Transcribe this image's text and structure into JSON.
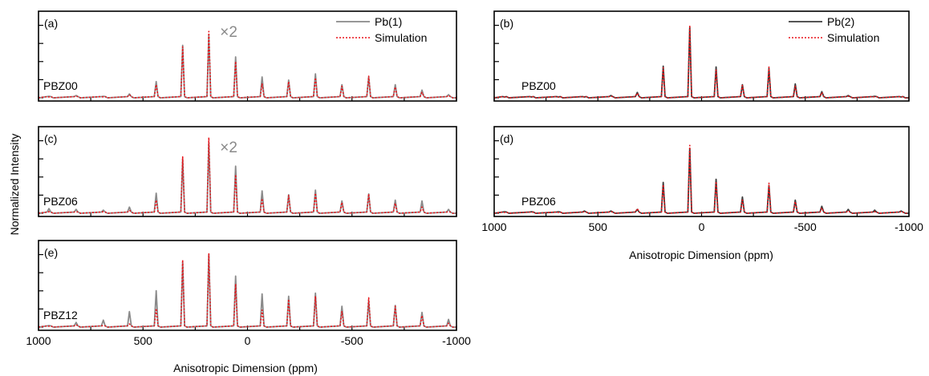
{
  "figure": {
    "ylabel": "Normalized Intensity",
    "xlabel": "Anisotropic Dimension (ppm)"
  },
  "chart_data": [
    {
      "type": "line",
      "panel": "(a)",
      "sample": "PBZ00",
      "annotation": "×2",
      "xlim": [
        1000,
        -1000
      ],
      "xticks": [
        1000,
        500,
        0,
        -500,
        -1000
      ],
      "ylim": [
        0,
        1.08
      ],
      "show_xlabels": false,
      "legend": [
        "Pb(1)",
        "Simulation"
      ],
      "legend_position": "top-right",
      "exp_color": "#8a8a8a",
      "sim_color": "#e8141a",
      "peak_x": [
        950,
        820,
        690,
        565,
        437,
        310,
        185,
        57,
        -70,
        -197,
        -325,
        -452,
        -580,
        -707,
        -835,
        -962
      ],
      "experiment": [
        0.02,
        0.03,
        0.02,
        0.05,
        0.21,
        0.68,
        0.81,
        0.53,
        0.27,
        0.23,
        0.31,
        0.17,
        0.27,
        0.17,
        0.1,
        0.04
      ],
      "simulation": [
        0.01,
        0.02,
        0.01,
        0.04,
        0.17,
        0.66,
        0.86,
        0.47,
        0.18,
        0.21,
        0.26,
        0.15,
        0.28,
        0.14,
        0.07,
        0.03
      ]
    },
    {
      "type": "line",
      "panel": "(b)",
      "sample": "PBZ00",
      "annotation": "",
      "xlim": [
        1000,
        -1000
      ],
      "xticks": [
        1000,
        500,
        0,
        -500,
        -1000
      ],
      "ylim": [
        0,
        1.08
      ],
      "show_xlabels": false,
      "legend": [
        "Pb(2)",
        "Simulation"
      ],
      "legend_position": "top-right",
      "exp_color": "#3d3d3d",
      "sim_color": "#e8141a",
      "peak_x": [
        950,
        820,
        690,
        565,
        437,
        310,
        185,
        57,
        -70,
        -197,
        -325,
        -452,
        -580,
        -707,
        -835,
        -962
      ],
      "experiment": [
        0.01,
        0.01,
        0.01,
        0.01,
        0.03,
        0.07,
        0.41,
        0.91,
        0.4,
        0.17,
        0.38,
        0.18,
        0.08,
        0.03,
        0.02,
        0.01
      ],
      "simulation": [
        0.01,
        0.01,
        0.01,
        0.01,
        0.02,
        0.06,
        0.39,
        0.94,
        0.36,
        0.16,
        0.4,
        0.15,
        0.07,
        0.02,
        0.01,
        0.01
      ]
    },
    {
      "type": "line",
      "panel": "(c)",
      "sample": "PBZ06",
      "annotation": "×2",
      "xlim": [
        1000,
        -1000
      ],
      "xticks": [
        1000,
        500,
        0,
        -500,
        -1000
      ],
      "ylim": [
        0,
        1.08
      ],
      "show_xlabels": false,
      "legend": [],
      "legend_position": "",
      "exp_color": "#8a8a8a",
      "sim_color": "#e8141a",
      "peak_x": [
        950,
        820,
        690,
        565,
        437,
        310,
        185,
        57,
        -70,
        -197,
        -325,
        -452,
        -580,
        -707,
        -835,
        -962
      ],
      "experiment": [
        0.06,
        0.05,
        0.04,
        0.08,
        0.26,
        0.7,
        0.91,
        0.61,
        0.29,
        0.24,
        0.3,
        0.16,
        0.25,
        0.17,
        0.16,
        0.05
      ],
      "simulation": [
        0.02,
        0.02,
        0.02,
        0.04,
        0.17,
        0.73,
        0.98,
        0.5,
        0.19,
        0.23,
        0.26,
        0.14,
        0.25,
        0.13,
        0.08,
        0.02
      ]
    },
    {
      "type": "line",
      "panel": "(d)",
      "sample": "PBZ06",
      "annotation": "",
      "xlim": [
        1000,
        -1000
      ],
      "xticks": [
        1000,
        500,
        0,
        -500,
        -1000
      ],
      "ylim": [
        0,
        1.08
      ],
      "show_xlabels": true,
      "legend": [],
      "legend_position": "",
      "exp_color": "#3d3d3d",
      "sim_color": "#e8141a",
      "peak_x": [
        950,
        820,
        690,
        565,
        437,
        310,
        185,
        57,
        -70,
        -197,
        -325,
        -452,
        -580,
        -707,
        -835,
        -962
      ],
      "experiment": [
        0.02,
        0.02,
        0.02,
        0.03,
        0.03,
        0.05,
        0.4,
        0.84,
        0.44,
        0.21,
        0.36,
        0.17,
        0.09,
        0.05,
        0.04,
        0.03
      ],
      "simulation": [
        0.01,
        0.01,
        0.01,
        0.02,
        0.02,
        0.06,
        0.37,
        0.88,
        0.41,
        0.17,
        0.39,
        0.15,
        0.07,
        0.03,
        0.02,
        0.02
      ]
    },
    {
      "type": "line",
      "panel": "(e)",
      "sample": "PBZ12",
      "annotation": "",
      "xlim": [
        1000,
        -1000
      ],
      "xticks": [
        1000,
        500,
        0,
        -500,
        -1000
      ],
      "ylim": [
        0,
        1.08
      ],
      "show_xlabels": true,
      "legend": [],
      "legend_position": "",
      "exp_color": "#8a8a8a",
      "sim_color": "#e8141a",
      "peak_x": [
        950,
        820,
        690,
        565,
        437,
        310,
        185,
        57,
        -70,
        -197,
        -325,
        -452,
        -580,
        -707,
        -835,
        -962
      ],
      "experiment": [
        0.02,
        0.06,
        0.09,
        0.2,
        0.47,
        0.84,
        0.94,
        0.66,
        0.43,
        0.4,
        0.44,
        0.27,
        0.34,
        0.28,
        0.19,
        0.1
      ],
      "simulation": [
        0.01,
        0.03,
        0.02,
        0.04,
        0.24,
        0.87,
        0.95,
        0.56,
        0.22,
        0.36,
        0.4,
        0.2,
        0.38,
        0.27,
        0.15,
        0.05
      ]
    }
  ]
}
